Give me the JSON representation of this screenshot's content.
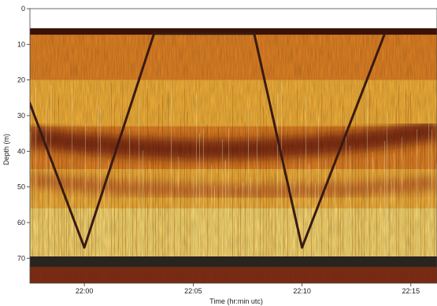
{
  "chart_data": {
    "type": "heatmap",
    "title": "",
    "xlabel": "Time (hr:min utc)",
    "ylabel": "Depth (m)",
    "x_ticks": [
      "22:00",
      "22:05",
      "22:10",
      "22:15"
    ],
    "x_tick_minutes": [
      0,
      5,
      10,
      15
    ],
    "xlim_minutes": [
      -2.5,
      16.2
    ],
    "y_ticks": [
      0,
      10,
      20,
      30,
      40,
      50,
      60,
      70
    ],
    "ylim": [
      0,
      77
    ],
    "y_inverted": true,
    "colormap": [
      "#3a1208",
      "#6e1f10",
      "#a8401c",
      "#d9761f",
      "#f0b23a",
      "#f7e27a",
      "#fbf3c8"
    ],
    "surface_band_depth": [
      0,
      5.5
    ],
    "bottom_band_depth": [
      69.5,
      72.5
    ],
    "scattering_layers": [
      {
        "name": "",
        "depth_at_start": 36,
        "depth_mid": 41,
        "depth_at_end": 34
      },
      {
        "name": "",
        "depth_at_start": 48,
        "depth_mid": 51,
        "depth_at_end": 49
      }
    ],
    "series": [
      {
        "name": "",
        "color": "#3a1a12",
        "x_minutes": [
          -2.6,
          0.0,
          3.2,
          7.8,
          10.0,
          13.8
        ],
        "y_depth": [
          25,
          67,
          7,
          7,
          67,
          7
        ]
      }
    ]
  }
}
